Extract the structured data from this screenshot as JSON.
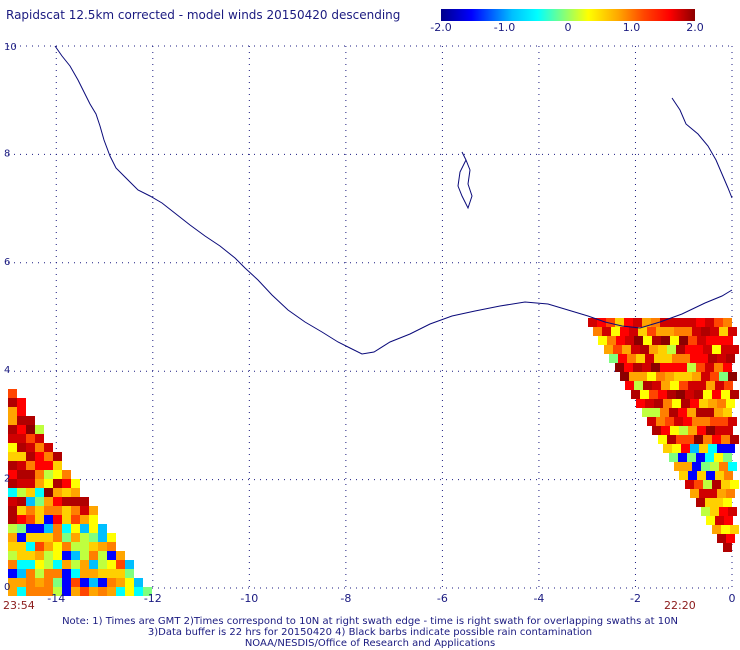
{
  "title": "Rapidscat 12.5km corrected - model winds 20150420 descending",
  "colorbar": {
    "ticks": [
      {
        "value": -2.0,
        "label": "-2.0"
      },
      {
        "value": -1.0,
        "label": "-1.0"
      },
      {
        "value": 0,
        "label": "0"
      },
      {
        "value": 1.0,
        "label": "1.0"
      },
      {
        "value": 2.0,
        "label": "2.0"
      }
    ],
    "min": -2.0,
    "max": 2.0,
    "colors": [
      "#00008b",
      "#0000ff",
      "#00bfff",
      "#00ffff",
      "#7fff7f",
      "#ffff00",
      "#ffa500",
      "#ff4500",
      "#ff0000",
      "#8b0000"
    ]
  },
  "axes": {
    "lon_range": [
      -15,
      0
    ],
    "lat_range": [
      0,
      10
    ],
    "x_ticks": [
      {
        "value": -14,
        "label": "-14"
      },
      {
        "value": -12,
        "label": "-12"
      },
      {
        "value": -10,
        "label": "-10"
      },
      {
        "value": -8,
        "label": "-8"
      },
      {
        "value": -6,
        "label": "-6"
      },
      {
        "value": -4,
        "label": "-4"
      },
      {
        "value": -2,
        "label": "-2"
      },
      {
        "value": 0,
        "label": "0"
      }
    ],
    "y_ticks": [
      {
        "value": 0,
        "label": "0"
      },
      {
        "value": 2,
        "label": "2"
      },
      {
        "value": 4,
        "label": "4"
      },
      {
        "value": 6,
        "label": "6"
      },
      {
        "value": 8,
        "label": "8"
      },
      {
        "value": 10,
        "label": "10"
      }
    ],
    "grid": true
  },
  "times": {
    "left": "23:54",
    "right": "22:20"
  },
  "notes": [
    "Note: 1) Times are GMT 2)Times correspond to 10N at right swath edge - time is right swath for overlapping swaths at 10N",
    "3)Data buffer is 22 hrs for 20150420 4) Black barbs indicate possible rain contamination",
    "NOAA/NESDIS/Office of Research and Applications"
  ],
  "colors": {
    "text": "#1a1a80",
    "coast": "#0a0a7a",
    "time": "#8b1a1a"
  }
}
